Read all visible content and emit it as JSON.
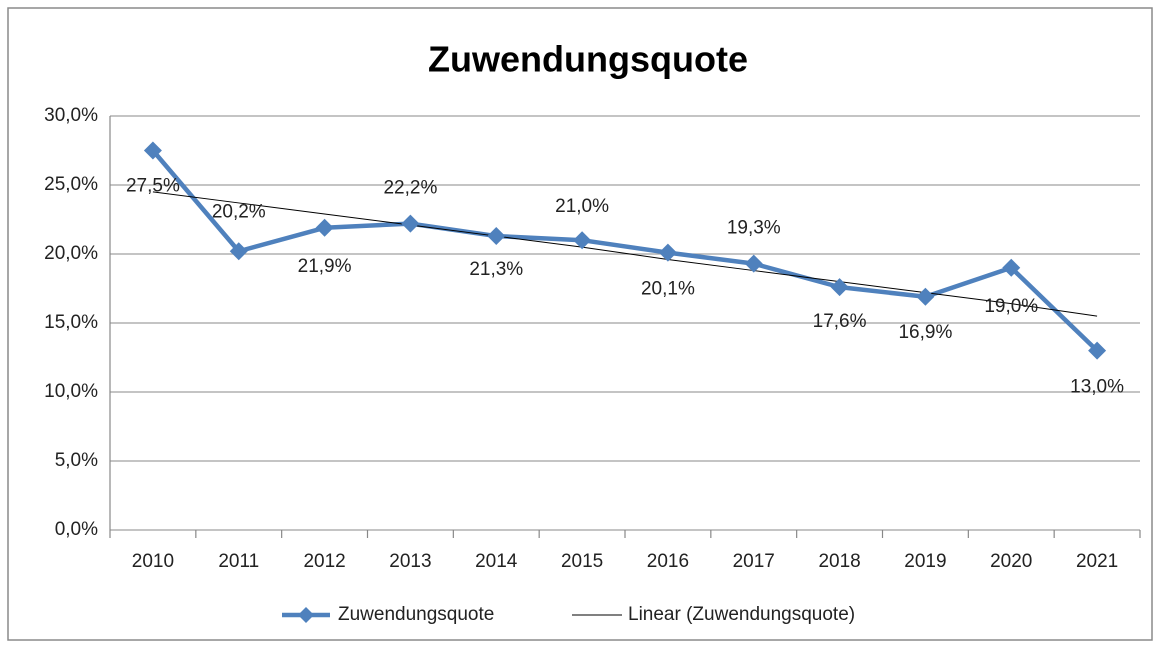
{
  "chart_data": {
    "type": "line",
    "title": "Zuwendungsquote",
    "categories": [
      "2010",
      "2011",
      "2012",
      "2013",
      "2014",
      "2015",
      "2016",
      "2017",
      "2018",
      "2019",
      "2020",
      "2021"
    ],
    "series": [
      {
        "name": "Zuwendungsquote",
        "color": "#4f81bd",
        "values": [
          27.5,
          20.2,
          21.9,
          22.2,
          21.3,
          21.0,
          20.1,
          19.3,
          17.6,
          16.9,
          19.0,
          13.0
        ],
        "value_labels": [
          "27,5%",
          "20,2%",
          "21,9%",
          "22,2%",
          "21,3%",
          "21,0%",
          "20,1%",
          "19,3%",
          "17,6%",
          "16,9%",
          "19,0%",
          "13,0%"
        ]
      },
      {
        "name": "Linear (Zuwendungsquote)",
        "color": "#000000",
        "values": [
          24.5,
          23.7,
          22.9,
          22.1,
          21.3,
          20.5,
          19.6,
          18.8,
          18.0,
          17.2,
          16.4,
          15.5
        ]
      }
    ],
    "ylim": [
      0,
      30
    ],
    "yticks": [
      {
        "value": 0,
        "label": "0,0%"
      },
      {
        "value": 5,
        "label": "5,0%"
      },
      {
        "value": 10,
        "label": "10,0%"
      },
      {
        "value": 15,
        "label": "15,0%"
      },
      {
        "value": 20,
        "label": "20,0%"
      },
      {
        "value": 25,
        "label": "25,0%"
      },
      {
        "value": 30,
        "label": "30,0%"
      }
    ],
    "grid": true,
    "legend": "bottom"
  }
}
